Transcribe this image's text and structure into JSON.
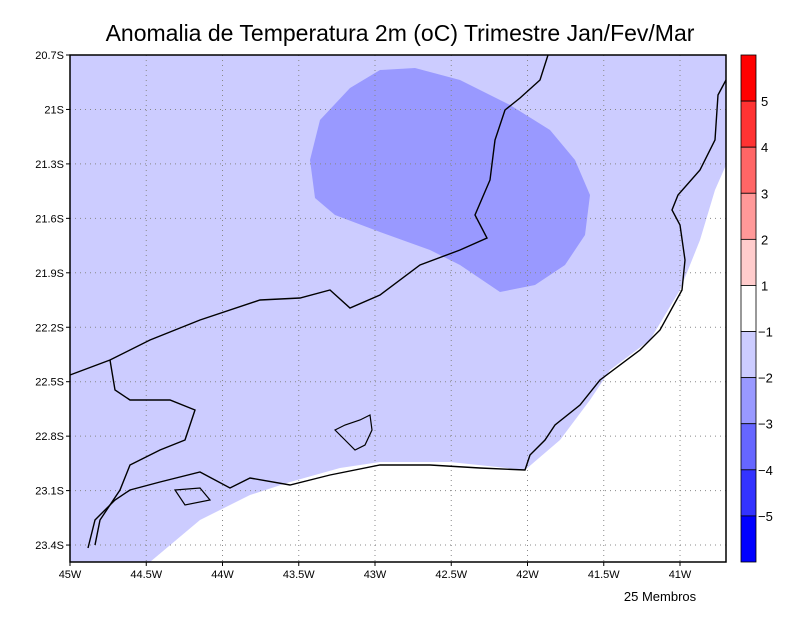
{
  "chart_data": {
    "type": "heatmap",
    "title": "Anomalia de Temperatura 2m (oC) Trimestre Jan/Fev/Mar",
    "footer": "25 Membros",
    "x_ticks": [
      "45W",
      "44.5W",
      "44W",
      "43.5W",
      "43W",
      "42.5W",
      "42W",
      "41.5W",
      "41W"
    ],
    "y_ticks": [
      "20.7S",
      "21S",
      "21.3S",
      "21.6S",
      "21.9S",
      "22.2S",
      "22.5S",
      "22.8S",
      "23.1S",
      "23.4S"
    ],
    "lon_range": [
      -45,
      -40.7
    ],
    "lat_range": [
      -23.5,
      -20.7
    ],
    "grid": true,
    "colorbar": {
      "labels": [
        "5",
        "4",
        "3",
        "2",
        "1",
        "-1",
        "-2",
        "-3",
        "-4",
        "-5"
      ],
      "colors": [
        "#ff0000",
        "#ff3333",
        "#ff6666",
        "#ff9999",
        "#ffcccc",
        "#ffffff",
        "#ccccff",
        "#9999ff",
        "#6666ff",
        "#3333ff",
        "#0000ff"
      ]
    },
    "regions": [
      {
        "range": "-1 to 1",
        "color": "#ffffff",
        "area": "south-east ocean"
      },
      {
        "range": "-2 to -1",
        "color": "#ccccff",
        "area": "most of domain"
      },
      {
        "range": "-3 to -2",
        "color": "#9999ff",
        "area": "north-central"
      }
    ]
  }
}
